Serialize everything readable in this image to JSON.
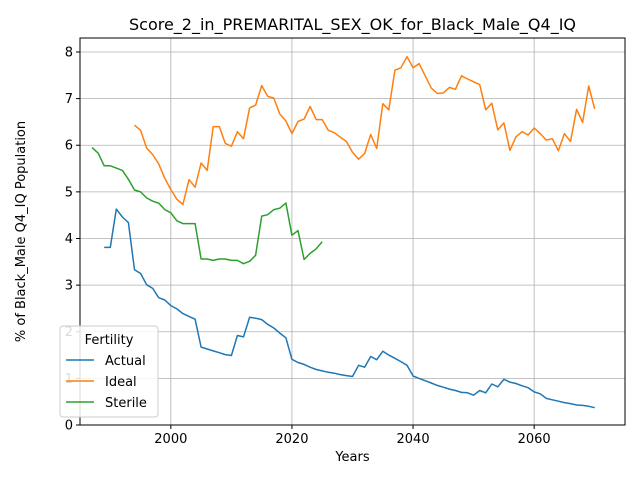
{
  "chart_data": {
    "type": "line",
    "title": "Score_2_in_PREMARITAL_SEX_OK_for_Black_Male_Q4_IQ",
    "xlabel": "Years",
    "ylabel": "% of Black_Male Q4_IQ Population",
    "xlim": [
      1985,
      2075
    ],
    "ylim": [
      0,
      8.3
    ],
    "xticks": [
      2000,
      2020,
      2040,
      2060
    ],
    "yticks": [
      0,
      1,
      2,
      3,
      4,
      5,
      6,
      7,
      8
    ],
    "grid": true,
    "legend": {
      "title": "Fertility",
      "position": "lower-left"
    },
    "colors": {
      "Actual": "#1f77b4",
      "Ideal": "#ff7f0e",
      "Sterile": "#2ca02c"
    },
    "series": [
      {
        "name": "Actual",
        "x": [
          1989,
          1990,
          1991,
          1992,
          1993,
          1994,
          1995,
          1996,
          1997,
          1998,
          1999,
          2000,
          2001,
          2002,
          2003,
          2004,
          2005,
          2006,
          2007,
          2008,
          2009,
          2010,
          2011,
          2012,
          2013,
          2014,
          2015,
          2016,
          2017,
          2018,
          2019,
          2020,
          2021,
          2022,
          2023,
          2024,
          2025,
          2026,
          2027,
          2028,
          2029,
          2030,
          2031,
          2032,
          2033,
          2034,
          2035,
          2036,
          2037,
          2038,
          2039,
          2040,
          2041,
          2042,
          2043,
          2044,
          2045,
          2046,
          2047,
          2048,
          2049,
          2050,
          2051,
          2052,
          2053,
          2054,
          2055,
          2056,
          2057,
          2058,
          2059,
          2060,
          2061,
          2062,
          2063,
          2064,
          2065,
          2066,
          2067,
          2068,
          2069,
          2070
        ],
        "values": [
          3.81,
          3.81,
          4.63,
          4.46,
          4.34,
          3.33,
          3.25,
          3.01,
          2.93,
          2.73,
          2.68,
          2.56,
          2.49,
          2.39,
          2.33,
          2.27,
          1.67,
          1.63,
          1.59,
          1.55,
          1.51,
          1.49,
          1.92,
          1.89,
          2.31,
          2.29,
          2.26,
          2.16,
          2.08,
          1.97,
          1.87,
          1.41,
          1.34,
          1.3,
          1.24,
          1.19,
          1.16,
          1.13,
          1.11,
          1.08,
          1.06,
          1.04,
          1.28,
          1.24,
          1.47,
          1.4,
          1.58,
          1.5,
          1.43,
          1.36,
          1.28,
          1.05,
          1.0,
          0.95,
          0.9,
          0.85,
          0.81,
          0.77,
          0.74,
          0.7,
          0.69,
          0.64,
          0.74,
          0.69,
          0.88,
          0.82,
          0.98,
          0.92,
          0.89,
          0.84,
          0.8,
          0.71,
          0.67,
          0.57,
          0.54,
          0.51,
          0.48,
          0.46,
          0.43,
          0.42,
          0.4,
          0.37
        ]
      },
      {
        "name": "Ideal",
        "x": [
          1994,
          1995,
          1996,
          1997,
          1998,
          1999,
          2000,
          2001,
          2002,
          2003,
          2004,
          2005,
          2006,
          2007,
          2008,
          2009,
          2010,
          2011,
          2012,
          2013,
          2014,
          2015,
          2016,
          2017,
          2018,
          2019,
          2020,
          2021,
          2022,
          2023,
          2024,
          2025,
          2026,
          2027,
          2028,
          2029,
          2030,
          2031,
          2032,
          2033,
          2034,
          2035,
          2036,
          2037,
          2038,
          2039,
          2040,
          2041,
          2042,
          2043,
          2044,
          2045,
          2046,
          2047,
          2048,
          2049,
          2050,
          2051,
          2052,
          2053,
          2054,
          2055,
          2056,
          2057,
          2058,
          2059,
          2060,
          2061,
          2062,
          2063,
          2064,
          2065,
          2066,
          2067,
          2068,
          2069,
          2070
        ],
        "values": [
          6.43,
          6.32,
          5.94,
          5.8,
          5.6,
          5.29,
          5.05,
          4.84,
          4.73,
          5.26,
          5.1,
          5.62,
          5.46,
          6.4,
          6.4,
          6.04,
          5.98,
          6.29,
          6.14,
          6.8,
          6.86,
          7.28,
          7.05,
          7.01,
          6.67,
          6.52,
          6.25,
          6.51,
          6.56,
          6.83,
          6.55,
          6.55,
          6.32,
          6.27,
          6.17,
          6.08,
          5.85,
          5.7,
          5.82,
          6.23,
          5.93,
          6.89,
          6.76,
          7.61,
          7.66,
          7.9,
          7.66,
          7.75,
          7.49,
          7.23,
          7.11,
          7.12,
          7.24,
          7.2,
          7.49,
          7.42,
          7.36,
          7.3,
          6.76,
          6.9,
          6.33,
          6.48,
          5.89,
          6.18,
          6.29,
          6.22,
          6.37,
          6.25,
          6.11,
          6.14,
          5.88,
          6.25,
          6.08,
          6.77,
          6.49,
          7.27,
          6.78
        ]
      },
      {
        "name": "Sterile",
        "x": [
          1987,
          1988,
          1989,
          1990,
          1991,
          1992,
          1993,
          1994,
          1995,
          1996,
          1997,
          1998,
          1999,
          2000,
          2001,
          2002,
          2003,
          2004,
          2005,
          2006,
          2007,
          2008,
          2009,
          2010,
          2011,
          2012,
          2013,
          2014,
          2015,
          2016,
          2017,
          2018,
          2019,
          2020,
          2021,
          2022,
          2023,
          2024,
          2025
        ],
        "values": [
          5.95,
          5.83,
          5.56,
          5.56,
          5.51,
          5.46,
          5.27,
          5.04,
          5.0,
          4.87,
          4.8,
          4.76,
          4.62,
          4.55,
          4.38,
          4.32,
          4.32,
          4.32,
          3.56,
          3.56,
          3.53,
          3.56,
          3.56,
          3.53,
          3.53,
          3.46,
          3.51,
          3.64,
          4.48,
          4.51,
          4.62,
          4.65,
          4.76,
          4.07,
          4.17,
          3.55,
          3.68,
          3.78,
          3.93
        ]
      }
    ]
  }
}
